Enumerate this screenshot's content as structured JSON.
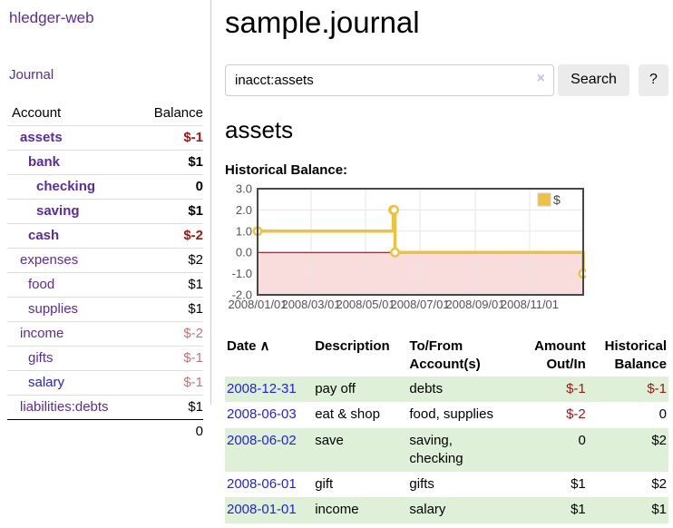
{
  "app": {
    "brand": "hledger-web"
  },
  "sidebar": {
    "nav": [
      {
        "label": "Journal"
      }
    ],
    "accounts_table": {
      "headers": {
        "account": "Account",
        "balance": "Balance"
      },
      "rows": [
        {
          "account": "assets",
          "indent": 0,
          "bold": true,
          "balance": "$-1",
          "balance_style": "neg-strong",
          "link_style": "visited"
        },
        {
          "account": "bank",
          "indent": 1,
          "bold": true,
          "balance": "$1",
          "balance_style": "pos",
          "link_style": "visited"
        },
        {
          "account": "checking",
          "indent": 2,
          "bold": true,
          "balance": "0",
          "balance_style": "pos",
          "link_style": "visited"
        },
        {
          "account": "saving",
          "indent": 2,
          "bold": true,
          "balance": "$1",
          "balance_style": "pos",
          "link_style": "visited"
        },
        {
          "account": "cash",
          "indent": 1,
          "bold": true,
          "balance": "$-2",
          "balance_style": "neg-strong",
          "link_style": "visited"
        },
        {
          "account": "expenses",
          "indent": 0,
          "bold": false,
          "balance": "$2",
          "balance_style": "pos",
          "link_style": "visited"
        },
        {
          "account": "food",
          "indent": 1,
          "bold": false,
          "balance": "$1",
          "balance_style": "pos",
          "link_style": "visited"
        },
        {
          "account": "supplies",
          "indent": 1,
          "bold": false,
          "balance": "$1",
          "balance_style": "pos",
          "link_style": "visited"
        },
        {
          "account": "income",
          "indent": 0,
          "bold": false,
          "balance": "$-2",
          "balance_style": "neg-light",
          "link_style": "visited"
        },
        {
          "account": "gifts",
          "indent": 1,
          "bold": false,
          "balance": "$-1",
          "balance_style": "neg-light",
          "link_style": "visited"
        },
        {
          "account": "salary",
          "indent": 1,
          "bold": false,
          "balance": "$-1",
          "balance_style": "neg-light",
          "link_style": "unvisited"
        },
        {
          "account": "liabilities:debts",
          "indent": 0,
          "bold": false,
          "balance": "$1",
          "balance_style": "pos",
          "link_style": "visited"
        }
      ],
      "total": "0"
    }
  },
  "header": {
    "title": "sample.journal"
  },
  "search": {
    "value": "inacct:assets",
    "clear_icon": "×",
    "button": "Search",
    "help_button": "?"
  },
  "account_page": {
    "title": "assets",
    "chart_label": "Historical Balance:"
  },
  "chart_data": {
    "type": "line",
    "step": true,
    "title": "Historical Balance",
    "series": [
      {
        "name": "$",
        "color": "#edc240",
        "points": [
          [
            "2008-01-01",
            1
          ],
          [
            "2008-06-01",
            2
          ],
          [
            "2008-06-02",
            2
          ],
          [
            "2008-06-03",
            0
          ],
          [
            "2008-12-31",
            -1
          ]
        ]
      }
    ],
    "x_range": [
      "2008-01-01",
      "2008-12-31"
    ],
    "x_ticks": [
      "2008/01/01",
      "2008/03/01",
      "2008/05/01",
      "2008/07/01",
      "2008/09/01",
      "2008/11/01"
    ],
    "y_ticks": [
      "3.0",
      "2.0",
      "1.0",
      "0.0",
      "-1.0",
      "-2.0"
    ],
    "ylim": [
      -2,
      3
    ],
    "grid": true,
    "grid_color": "#e6e6e6",
    "border_color": "#474747",
    "tick_label_color": "#545454",
    "negative_region_fill": "#f9dcdc",
    "zero_line_color": "#800000",
    "legend": {
      "label": "$",
      "position": "top-right"
    }
  },
  "register": {
    "headers": {
      "date": "Date",
      "sort_icon": "∧",
      "description": "Description",
      "account": "To/From Account(s)",
      "amount": "Amount Out/In",
      "balance": "Historical Balance"
    },
    "rows": [
      {
        "date": "2008-12-31",
        "description": "pay off",
        "accounts": "debts",
        "amount": "$-1",
        "amount_neg": true,
        "balance": "$-1",
        "balance_neg": true
      },
      {
        "date": "2008-06-03",
        "description": "eat & shop",
        "accounts": "food, supplies",
        "amount": "$-2",
        "amount_neg": true,
        "balance": "0",
        "balance_neg": false
      },
      {
        "date": "2008-06-02",
        "description": "save",
        "accounts": "saving, checking",
        "amount": "0",
        "amount_neg": false,
        "balance": "$2",
        "balance_neg": false
      },
      {
        "date": "2008-06-01",
        "description": "gift",
        "accounts": "gifts",
        "amount": "$1",
        "amount_neg": false,
        "balance": "$2",
        "balance_neg": false
      },
      {
        "date": "2008-01-01",
        "description": "income",
        "accounts": "salary",
        "amount": "$1",
        "amount_neg": false,
        "balance": "$1",
        "balance_neg": false
      }
    ]
  },
  "colors": {
    "link_purple": "#5b2b9f",
    "link_blue": "#2222dd",
    "negative_strong": "#9e1616",
    "negative_light": "#c1767a",
    "row_stripe_green": "#dff0d8",
    "button_bg": "#ebebeb",
    "series_gold": "#edc240"
  }
}
